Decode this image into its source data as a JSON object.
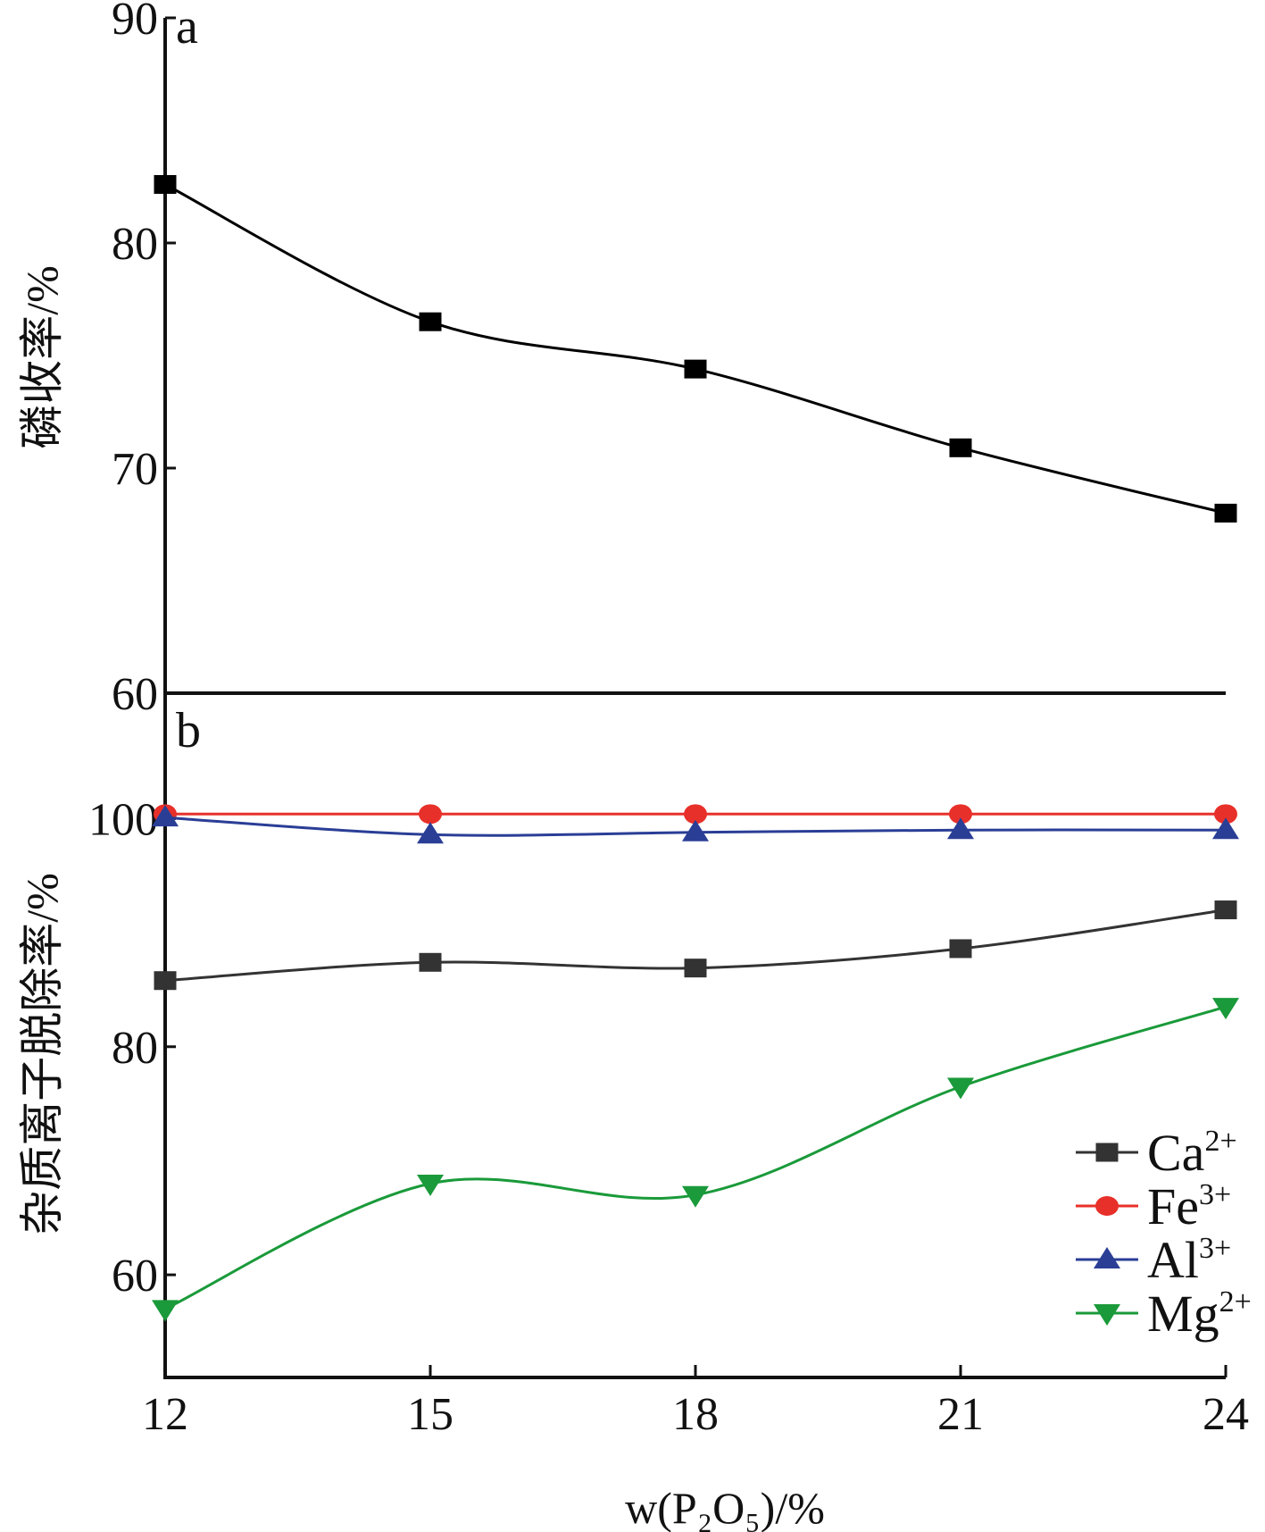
{
  "figure": {
    "x_axis_title": "w(P₂O₅)/%"
  },
  "chart_data": [
    {
      "type": "line",
      "panel_label": "a",
      "ylabel": "磷收率/%",
      "xlabel": "",
      "x": [
        12,
        15,
        18,
        21,
        24
      ],
      "xlim": [
        12,
        24
      ],
      "ylim": [
        60,
        90
      ],
      "yticks": [
        60,
        70,
        80,
        90
      ],
      "ytick_labels": [
        "60",
        "70",
        "80",
        "90"
      ],
      "grid": false,
      "legend": "none",
      "series": [
        {
          "name": "",
          "color": "#000000",
          "marker": "square",
          "values": [
            82.6,
            76.5,
            74.4,
            70.9,
            68.0
          ]
        }
      ]
    },
    {
      "type": "line",
      "panel_label": "b",
      "ylabel": "杂质离子脱除率/%",
      "xlabel": "w(P₂O₅)/%",
      "x": [
        12,
        15,
        18,
        21,
        24
      ],
      "xticks": [
        12,
        15,
        18,
        21,
        24
      ],
      "xtick_labels": [
        "12",
        "15",
        "18",
        "21",
        "24"
      ],
      "xlim": [
        12,
        24
      ],
      "ylim": [
        51,
        111
      ],
      "yticks": [
        60,
        80,
        100
      ],
      "ytick_labels": [
        "60",
        "80",
        "100"
      ],
      "grid": false,
      "legend": "bottom-right",
      "series": [
        {
          "name": "Ca",
          "charge": "2+",
          "color": "#333333",
          "marker": "square",
          "values": [
            85.8,
            87.4,
            86.9,
            88.6,
            92.0
          ]
        },
        {
          "name": "Fe",
          "charge": "3+",
          "color": "#e8302a",
          "marker": "circle",
          "values": [
            100.4,
            100.4,
            100.4,
            100.4,
            100.4
          ]
        },
        {
          "name": "Al",
          "charge": "3+",
          "color": "#2a3e96",
          "marker": "triangle-up",
          "values": [
            100.1,
            98.6,
            98.8,
            99.0,
            99.0
          ]
        },
        {
          "name": "Mg",
          "charge": "2+",
          "color": "#1a9a3a",
          "marker": "triangle-down",
          "values": [
            57.0,
            68.0,
            67.0,
            76.5,
            83.5
          ]
        }
      ]
    }
  ]
}
